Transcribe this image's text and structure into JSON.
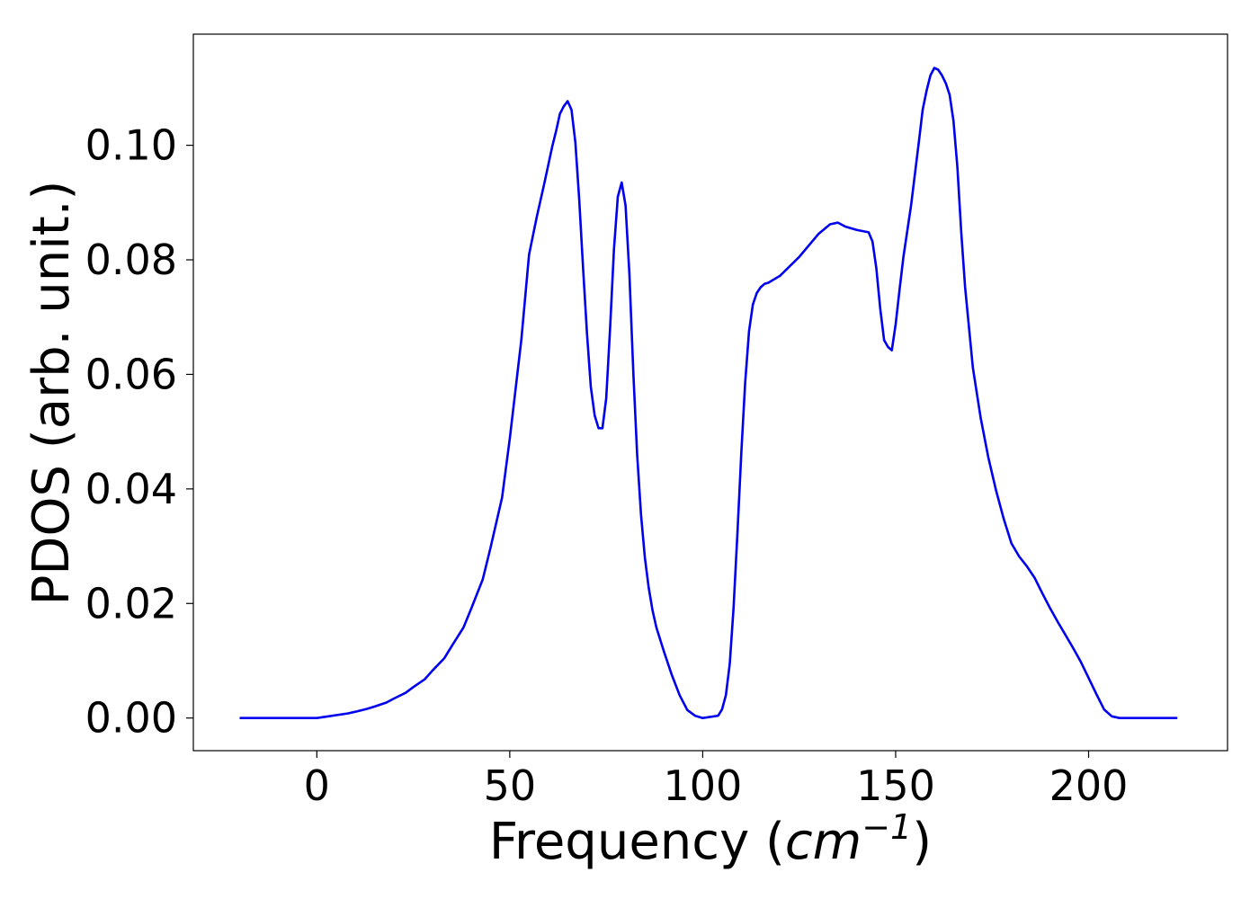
{
  "chart_data": {
    "type": "line",
    "title": "",
    "xlabel": "Frequency (",
    "xlabel_math": "cm",
    "xlabel_superscript": "−1",
    "xlabel_suffix": ")",
    "ylabel": "PDOS (arb. unit.)",
    "xlim": [
      -32,
      236
    ],
    "ylim": [
      -0.0057,
      0.1194
    ],
    "xticks": [
      0,
      50,
      100,
      150,
      200
    ],
    "xtick_labels": [
      "0",
      "50",
      "100",
      "150",
      "200"
    ],
    "yticks": [
      0.0,
      0.02,
      0.04,
      0.06,
      0.08,
      0.1
    ],
    "ytick_labels": [
      "0.00",
      "0.02",
      "0.04",
      "0.06",
      "0.08",
      "0.10"
    ],
    "grid": false,
    "line_color": "#0000ee",
    "series": [
      {
        "x": [
          -20,
          -10,
          0,
          3,
          5,
          8,
          10,
          13,
          15,
          18,
          20,
          23,
          25,
          28,
          30,
          33,
          35,
          38,
          40,
          43,
          45,
          48,
          50,
          53,
          55,
          57,
          59,
          61,
          62,
          63,
          64,
          65,
          66,
          67,
          68,
          69,
          70,
          71,
          72,
          73,
          74,
          75,
          76,
          77,
          78,
          79,
          80,
          81,
          82,
          83,
          84,
          85,
          86,
          87,
          88,
          90,
          92,
          94,
          96,
          98,
          100,
          104,
          105,
          106,
          107,
          108,
          109,
          110,
          111,
          112,
          113,
          114,
          115,
          116,
          117,
          120,
          125,
          130,
          133,
          135,
          137,
          140,
          143,
          144,
          145,
          146,
          147,
          148,
          149,
          150,
          151,
          152,
          154,
          156,
          157,
          158,
          159,
          160,
          161,
          162,
          163,
          164,
          165,
          166,
          167,
          168,
          170,
          172,
          174,
          176,
          178,
          180,
          182,
          184,
          186,
          188,
          190,
          192,
          194,
          196,
          198,
          200,
          202,
          204,
          206,
          208,
          215,
          223
        ],
        "y": [
          0.0,
          0.0,
          0.0,
          0.0003,
          0.0005,
          0.0008,
          0.0011,
          0.0016,
          0.002,
          0.0027,
          0.0034,
          0.0044,
          0.0054,
          0.0068,
          0.0083,
          0.0104,
          0.0126,
          0.0158,
          0.0191,
          0.0242,
          0.0297,
          0.0385,
          0.0488,
          0.066,
          0.0809,
          0.0875,
          0.0935,
          0.0998,
          0.1025,
          0.1055,
          0.1068,
          0.1077,
          0.1062,
          0.1005,
          0.0905,
          0.0785,
          0.0672,
          0.0578,
          0.0528,
          0.0506,
          0.0506,
          0.0558,
          0.068,
          0.0818,
          0.091,
          0.0935,
          0.0895,
          0.0775,
          0.0605,
          0.046,
          0.0355,
          0.028,
          0.0228,
          0.0188,
          0.0158,
          0.0115,
          0.0075,
          0.004,
          0.0014,
          0.0004,
          0.0,
          0.0004,
          0.0015,
          0.004,
          0.0095,
          0.0192,
          0.0322,
          0.0462,
          0.0585,
          0.0675,
          0.0722,
          0.0742,
          0.0752,
          0.0758,
          0.076,
          0.0772,
          0.0805,
          0.0845,
          0.0862,
          0.0865,
          0.0858,
          0.0852,
          0.0848,
          0.0832,
          0.0785,
          0.0715,
          0.066,
          0.0648,
          0.0642,
          0.0688,
          0.0748,
          0.0805,
          0.0895,
          0.1005,
          0.1062,
          0.1095,
          0.1122,
          0.1135,
          0.1132,
          0.1122,
          0.1108,
          0.1088,
          0.1042,
          0.0962,
          0.0848,
          0.0752,
          0.0612,
          0.0525,
          0.0455,
          0.0398,
          0.0348,
          0.0305,
          0.0282,
          0.0265,
          0.0245,
          0.0218,
          0.0192,
          0.0168,
          0.0145,
          0.0122,
          0.0098,
          0.007,
          0.0042,
          0.0015,
          0.0003,
          0.0,
          0.0,
          0.0
        ]
      }
    ]
  }
}
